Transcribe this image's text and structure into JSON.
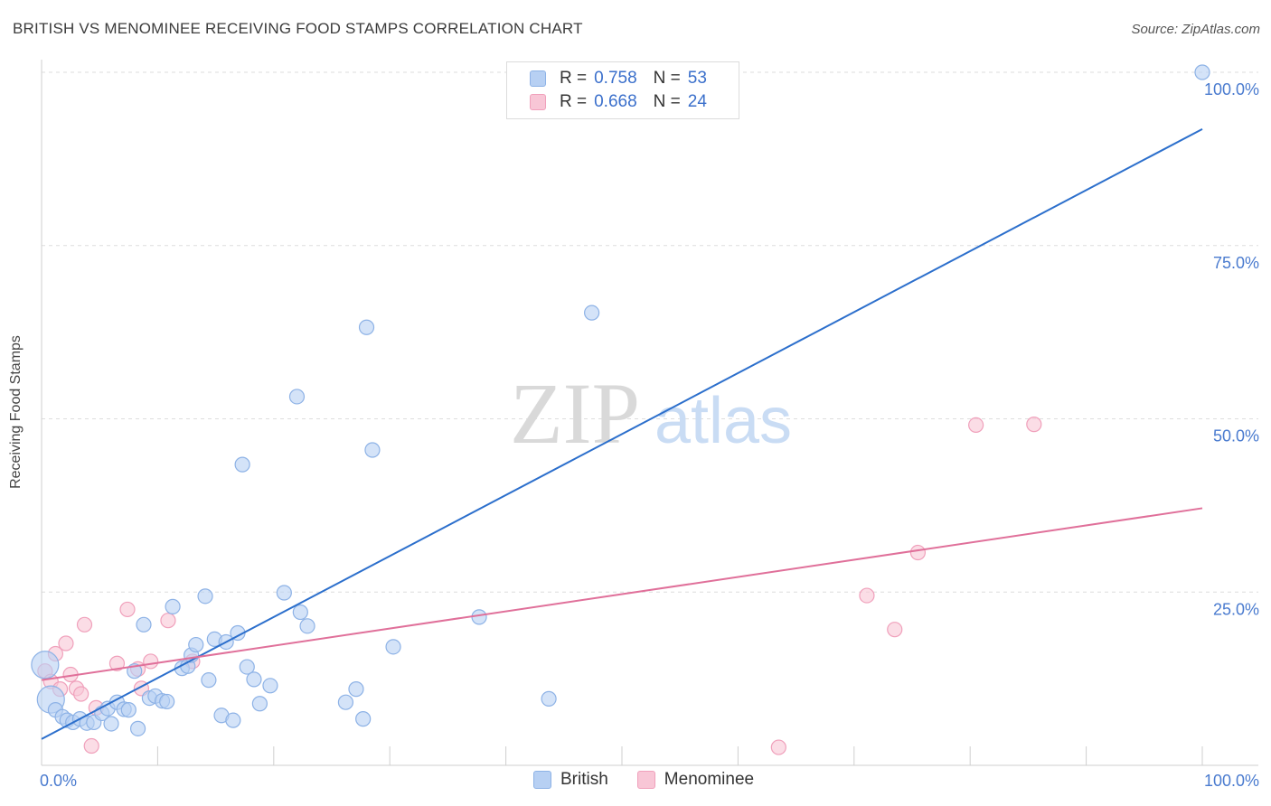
{
  "title": "BRITISH VS MENOMINEE RECEIVING FOOD STAMPS CORRELATION CHART",
  "source": "Source: ZipAtlas.com",
  "watermark": {
    "zip": "ZIP",
    "atlas": "atlas"
  },
  "legend_top": [
    {
      "r_label": "R =",
      "r_value": "0.758",
      "n_label": "N =",
      "n_value": "53"
    },
    {
      "r_label": "R =",
      "r_value": "0.668",
      "n_label": "N =",
      "n_value": "24"
    }
  ],
  "legend_bottom": [
    "British",
    "Menominee"
  ],
  "colors": {
    "british_fill": "#b7d0f3",
    "british_stroke": "#8db2e6",
    "british_line": "#2c6fcc",
    "menominee_fill": "#f8c6d6",
    "menominee_stroke": "#f0a0bb",
    "menominee_line": "#e0709a",
    "axis_text": "#4a7bcf",
    "grid": "#dedede"
  },
  "chart_data": {
    "type": "scatter",
    "title": "BRITISH VS MENOMINEE RECEIVING FOOD STAMPS CORRELATION CHART",
    "xlabel": "",
    "ylabel": "Receiving Food Stamps",
    "xlim": [
      0,
      100
    ],
    "ylim": [
      0,
      100
    ],
    "x_tick_labels": [
      {
        "value": 0,
        "label": "0.0%"
      },
      {
        "value": 100,
        "label": "100.0%"
      }
    ],
    "y_tick_labels": [
      {
        "value": 25,
        "label": "25.0%"
      },
      {
        "value": 50,
        "label": "50.0%"
      },
      {
        "value": 75,
        "label": "75.0%"
      },
      {
        "value": 100,
        "label": "100.0%"
      }
    ],
    "series": [
      {
        "name": "British",
        "r": 0.758,
        "n": 53,
        "trend": {
          "x": [
            0,
            100
          ],
          "y": [
            3.8,
            91.8
          ]
        },
        "points": [
          {
            "x": 0.3,
            "y": 14.5,
            "big": true
          },
          {
            "x": 0.8,
            "y": 9.5,
            "big": true
          },
          {
            "x": 1.2,
            "y": 8
          },
          {
            "x": 1.8,
            "y": 7
          },
          {
            "x": 2.2,
            "y": 6.5
          },
          {
            "x": 2.7,
            "y": 6.2
          },
          {
            "x": 3.3,
            "y": 6.7
          },
          {
            "x": 3.9,
            "y": 6.1
          },
          {
            "x": 4.5,
            "y": 6.2
          },
          {
            "x": 5.2,
            "y": 7.5
          },
          {
            "x": 5.7,
            "y": 8.2
          },
          {
            "x": 6.0,
            "y": 6
          },
          {
            "x": 6.5,
            "y": 9.1
          },
          {
            "x": 7.1,
            "y": 8.1
          },
          {
            "x": 7.5,
            "y": 8
          },
          {
            "x": 8,
            "y": 13.6
          },
          {
            "x": 8.3,
            "y": 5.3
          },
          {
            "x": 8.8,
            "y": 20.3
          },
          {
            "x": 9.3,
            "y": 9.7
          },
          {
            "x": 9.8,
            "y": 10
          },
          {
            "x": 10.4,
            "y": 9.3
          },
          {
            "x": 10.8,
            "y": 9.2
          },
          {
            "x": 11.3,
            "y": 22.9
          },
          {
            "x": 12.1,
            "y": 14
          },
          {
            "x": 12.6,
            "y": 14.3
          },
          {
            "x": 12.9,
            "y": 15.9
          },
          {
            "x": 13.3,
            "y": 17.4
          },
          {
            "x": 14.1,
            "y": 24.4
          },
          {
            "x": 14.4,
            "y": 12.3
          },
          {
            "x": 14.9,
            "y": 18.2
          },
          {
            "x": 15.5,
            "y": 7.2
          },
          {
            "x": 15.9,
            "y": 17.8
          },
          {
            "x": 16.5,
            "y": 6.5
          },
          {
            "x": 16.9,
            "y": 19.1
          },
          {
            "x": 17.3,
            "y": 43.4
          },
          {
            "x": 17.7,
            "y": 14.2
          },
          {
            "x": 18.3,
            "y": 12.4
          },
          {
            "x": 18.8,
            "y": 8.9
          },
          {
            "x": 19.7,
            "y": 11.5
          },
          {
            "x": 20.9,
            "y": 24.9
          },
          {
            "x": 22.0,
            "y": 53.2
          },
          {
            "x": 22.3,
            "y": 22.1
          },
          {
            "x": 22.9,
            "y": 20.1
          },
          {
            "x": 26.2,
            "y": 9.1
          },
          {
            "x": 27.1,
            "y": 11
          },
          {
            "x": 27.7,
            "y": 6.7
          },
          {
            "x": 28,
            "y": 63.2
          },
          {
            "x": 28.5,
            "y": 45.5
          },
          {
            "x": 30.3,
            "y": 17.1
          },
          {
            "x": 37.7,
            "y": 21.4
          },
          {
            "x": 43.7,
            "y": 9.6
          },
          {
            "x": 47.4,
            "y": 65.3
          },
          {
            "x": 100,
            "y": 100
          }
        ]
      },
      {
        "name": "Menominee",
        "r": 0.668,
        "n": 24,
        "trend": {
          "x": [
            0,
            100
          ],
          "y": [
            12.3,
            37.1
          ]
        },
        "points": [
          {
            "x": 0.3,
            "y": 13.6
          },
          {
            "x": 0.8,
            "y": 12.1
          },
          {
            "x": 1.2,
            "y": 16.1
          },
          {
            "x": 1.6,
            "y": 11
          },
          {
            "x": 2.1,
            "y": 17.6
          },
          {
            "x": 2.5,
            "y": 13.1
          },
          {
            "x": 3,
            "y": 11.1
          },
          {
            "x": 3.4,
            "y": 10.3
          },
          {
            "x": 3.7,
            "y": 20.3
          },
          {
            "x": 4.3,
            "y": 2.8
          },
          {
            "x": 4.7,
            "y": 8.3
          },
          {
            "x": 6.5,
            "y": 14.7
          },
          {
            "x": 7.4,
            "y": 22.5
          },
          {
            "x": 8.3,
            "y": 13.9
          },
          {
            "x": 8.6,
            "y": 11.1
          },
          {
            "x": 9.4,
            "y": 15
          },
          {
            "x": 10.9,
            "y": 20.9
          },
          {
            "x": 13,
            "y": 15
          },
          {
            "x": 63.5,
            "y": 2.6
          },
          {
            "x": 71.1,
            "y": 24.5
          },
          {
            "x": 73.5,
            "y": 19.6
          },
          {
            "x": 75.5,
            "y": 30.7
          },
          {
            "x": 80.5,
            "y": 49.1
          },
          {
            "x": 85.5,
            "y": 49.2
          }
        ]
      }
    ],
    "legend": [
      "British",
      "Menominee"
    ],
    "grid": true
  }
}
